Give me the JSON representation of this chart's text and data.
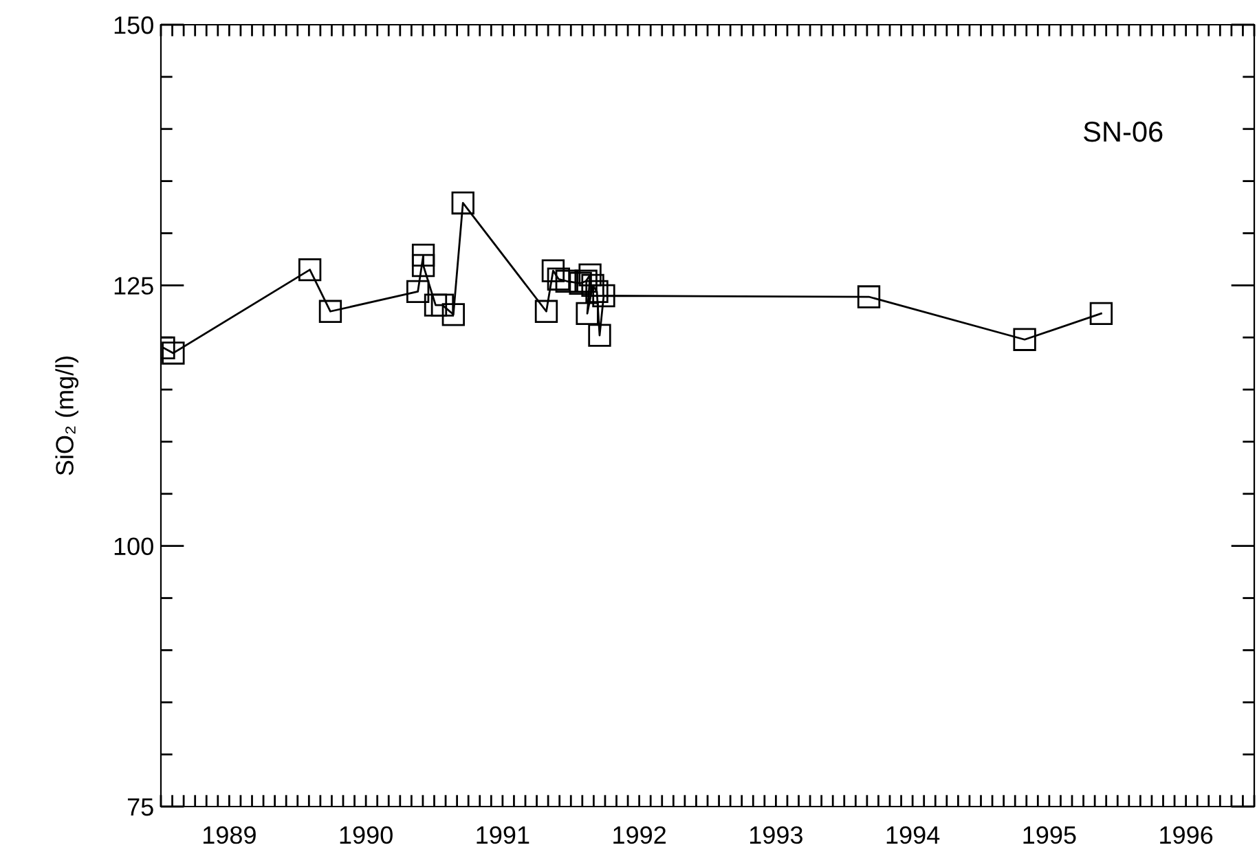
{
  "chart_data": {
    "type": "line",
    "ylabel": "SiO₂ (mg/l)",
    "annotations": [
      "SN-06"
    ],
    "series": [
      {
        "color": "#000000",
        "marker": "square",
        "x": [
          1989.02,
          1989.09,
          1990.09,
          1990.24,
          1990.88,
          1990.92,
          1990.92,
          1991.01,
          1991.06,
          1991.14,
          1991.21,
          1991.82,
          1991.87,
          1991.91,
          1991.97,
          1992.07,
          1992.11,
          1992.14,
          1992.12,
          1992.16,
          1992.19,
          1992.21,
          1992.24,
          1994.18,
          1995.32,
          1995.88
        ],
        "values": [
          119.0,
          118.5,
          126.5,
          122.5,
          124.4,
          127.9,
          126.9,
          123.1,
          123.1,
          122.2,
          132.9,
          122.5,
          126.4,
          125.6,
          125.4,
          125.2,
          125.4,
          126.0,
          122.3,
          125.0,
          124.4,
          120.2,
          124.0,
          123.9,
          119.8,
          122.3
        ]
      }
    ],
    "xlim": [
      1989,
      1997
    ],
    "xticks": [
      {
        "value": 1989.5,
        "label": "1989"
      },
      {
        "value": 1990,
        "label": null
      },
      {
        "value": 1990.5,
        "label": "1990"
      },
      {
        "value": 1991,
        "label": null
      },
      {
        "value": 1991.5,
        "label": "1991"
      },
      {
        "value": 1992,
        "label": null
      },
      {
        "value": 1992.5,
        "label": "1992"
      },
      {
        "value": 1993,
        "label": null
      },
      {
        "value": 1993.5,
        "label": "1993"
      },
      {
        "value": 1994,
        "label": null
      },
      {
        "value": 1994.5,
        "label": "1994"
      },
      {
        "value": 1995,
        "label": null
      },
      {
        "value": 1995.5,
        "label": "1995"
      },
      {
        "value": 1996,
        "label": null
      },
      {
        "value": 1996.5,
        "label": "1996"
      }
    ],
    "ylim": [
      75,
      150
    ],
    "yticks": [
      75,
      100,
      125,
      150
    ],
    "grid": false,
    "legend": false,
    "line_style": "solid"
  }
}
